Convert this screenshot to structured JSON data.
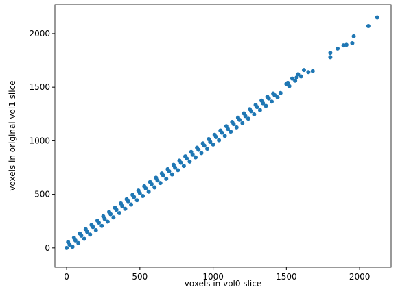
{
  "chart_data": {
    "type": "scatter",
    "xlabel": "voxels in vol0 slice",
    "ylabel": "voxels in original vol1 slice",
    "xlim": [
      -80,
      2215
    ],
    "ylim": [
      -180,
      2268
    ],
    "xticks": [
      0,
      500,
      1000,
      1500,
      2000
    ],
    "yticks": [
      0,
      500,
      1000,
      1500,
      2000
    ],
    "x": [
      0,
      20,
      10,
      40,
      60,
      50,
      80,
      100,
      90,
      120,
      140,
      130,
      160,
      180,
      170,
      200,
      220,
      210,
      240,
      260,
      250,
      280,
      300,
      290,
      320,
      340,
      330,
      360,
      380,
      370,
      400,
      420,
      410,
      440,
      460,
      450,
      480,
      500,
      490,
      520,
      540,
      530,
      560,
      580,
      570,
      600,
      620,
      610,
      640,
      660,
      650,
      680,
      700,
      690,
      720,
      740,
      730,
      760,
      780,
      770,
      800,
      820,
      810,
      840,
      860,
      850,
      880,
      900,
      890,
      920,
      940,
      930,
      960,
      980,
      970,
      1000,
      1020,
      1010,
      1040,
      1060,
      1050,
      1080,
      1100,
      1090,
      1120,
      1140,
      1130,
      1160,
      1180,
      1170,
      1200,
      1220,
      1210,
      1240,
      1260,
      1250,
      1280,
      1300,
      1290,
      1320,
      1340,
      1330,
      1360,
      1380,
      1370,
      1400,
      1420,
      1410,
      1440,
      1460,
      1500,
      1520,
      1560,
      1580,
      1600,
      1620,
      1650,
      1680,
      1570,
      1540,
      1510,
      1800,
      1800,
      1850,
      1890,
      1910,
      1950,
      1960,
      2060,
      2120
    ],
    "series": [
      {
        "color": "#1f77b4",
        "values": [
          0,
          30,
          55,
          10,
          70,
          95,
          45,
          115,
          135,
          85,
          150,
          175,
          125,
          195,
          215,
          165,
          235,
          255,
          205,
          270,
          295,
          245,
          315,
          335,
          285,
          355,
          375,
          325,
          390,
          415,
          365,
          435,
          455,
          405,
          475,
          495,
          445,
          510,
          535,
          485,
          555,
          575,
          525,
          595,
          615,
          565,
          630,
          655,
          605,
          675,
          695,
          645,
          715,
          735,
          685,
          750,
          775,
          725,
          795,
          815,
          765,
          835,
          855,
          805,
          870,
          895,
          845,
          915,
          935,
          885,
          955,
          975,
          925,
          990,
          1015,
          965,
          1035,
          1055,
          1005,
          1075,
          1095,
          1045,
          1110,
          1135,
          1085,
          1155,
          1175,
          1125,
          1195,
          1215,
          1165,
          1230,
          1255,
          1205,
          1275,
          1295,
          1245,
          1315,
          1335,
          1285,
          1350,
          1375,
          1325,
          1395,
          1410,
          1365,
          1425,
          1440,
          1405,
          1445,
          1530,
          1510,
          1560,
          1620,
          1600,
          1660,
          1640,
          1650,
          1590,
          1580,
          1540,
          1820,
          1780,
          1860,
          1890,
          1895,
          1910,
          1975,
          2070,
          2150
        ]
      }
    ]
  }
}
